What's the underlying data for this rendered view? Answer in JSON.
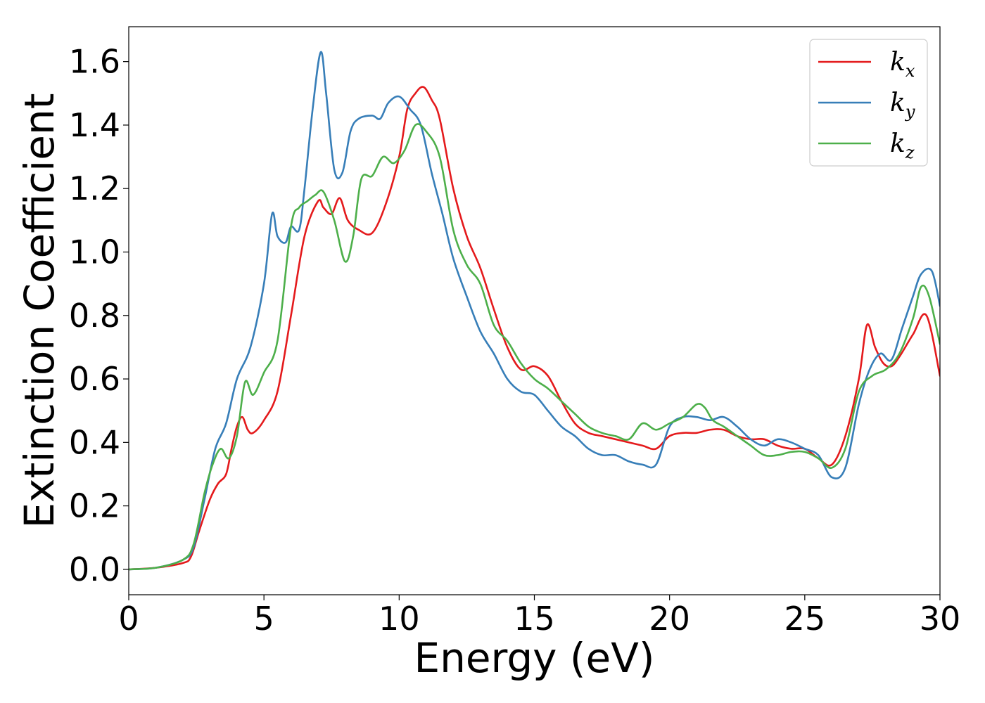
{
  "chart_data": {
    "type": "line",
    "xlabel": "Energy (eV)",
    "ylabel": "Extinction Coefficient",
    "xlim": [
      0,
      30
    ],
    "ylim": [
      -0.08,
      1.71
    ],
    "xticks": [
      0,
      5,
      10,
      15,
      20,
      25,
      30
    ],
    "yticks": [
      0.0,
      0.2,
      0.4,
      0.6,
      0.8,
      1.0,
      1.2,
      1.4,
      1.6
    ],
    "x_tick_labels": [
      "0",
      "5",
      "10",
      "15",
      "20",
      "25",
      "30"
    ],
    "y_tick_labels": [
      "0.0",
      "0.2",
      "0.4",
      "0.6",
      "0.8",
      "1.0",
      "1.2",
      "1.4",
      "1.6"
    ],
    "grid": false,
    "legend_position": "top-right",
    "series": [
      {
        "name": "k",
        "subscript": "x",
        "color": "#e41a1c",
        "x": [
          0,
          1,
          2,
          2.3,
          2.6,
          3.0,
          3.3,
          3.6,
          3.8,
          4.0,
          4.2,
          4.4,
          4.6,
          5.0,
          5.5,
          6.0,
          6.5,
          7.0,
          7.2,
          7.5,
          7.8,
          8.1,
          8.5,
          9.0,
          9.5,
          10.0,
          10.3,
          10.6,
          10.9,
          11.2,
          11.5,
          12.0,
          12.5,
          13.0,
          13.5,
          14.0,
          14.5,
          15.0,
          15.5,
          16.0,
          16.5,
          17.0,
          17.5,
          18.0,
          18.5,
          19.0,
          19.5,
          20.0,
          20.5,
          21.0,
          21.5,
          22.0,
          22.5,
          23.0,
          23.5,
          24.0,
          24.5,
          25.0,
          25.5,
          26.0,
          26.5,
          27.0,
          27.3,
          27.6,
          27.9,
          28.2,
          28.5,
          29.0,
          29.5,
          30.0
        ],
        "y": [
          0.0,
          0.005,
          0.02,
          0.04,
          0.12,
          0.22,
          0.27,
          0.3,
          0.38,
          0.45,
          0.48,
          0.44,
          0.43,
          0.47,
          0.56,
          0.8,
          1.05,
          1.16,
          1.14,
          1.12,
          1.17,
          1.1,
          1.07,
          1.06,
          1.15,
          1.3,
          1.45,
          1.5,
          1.52,
          1.48,
          1.42,
          1.2,
          1.05,
          0.95,
          0.82,
          0.7,
          0.63,
          0.64,
          0.61,
          0.53,
          0.46,
          0.43,
          0.42,
          0.41,
          0.4,
          0.39,
          0.38,
          0.42,
          0.43,
          0.43,
          0.44,
          0.44,
          0.42,
          0.41,
          0.41,
          0.39,
          0.38,
          0.38,
          0.35,
          0.33,
          0.42,
          0.6,
          0.77,
          0.7,
          0.65,
          0.64,
          0.67,
          0.74,
          0.8,
          0.61
        ]
      },
      {
        "name": "k",
        "subscript": "y",
        "color": "#377eb8",
        "x": [
          0,
          1,
          2,
          2.4,
          2.8,
          3.2,
          3.6,
          4.0,
          4.5,
          5.0,
          5.3,
          5.5,
          5.8,
          6.0,
          6.3,
          6.5,
          6.8,
          7.1,
          7.3,
          7.6,
          7.9,
          8.2,
          8.5,
          9.0,
          9.3,
          9.6,
          10.0,
          10.4,
          10.8,
          11.2,
          11.6,
          12.0,
          12.5,
          13.0,
          13.5,
          14.0,
          14.5,
          15.0,
          15.5,
          16.0,
          16.5,
          17.0,
          17.5,
          18.0,
          18.5,
          19.0,
          19.5,
          20.0,
          20.5,
          21.0,
          21.5,
          22.0,
          22.5,
          23.0,
          23.5,
          24.0,
          24.5,
          25.0,
          25.5,
          26.0,
          26.5,
          27.0,
          27.4,
          27.8,
          28.2,
          28.6,
          29.0,
          29.3,
          29.7,
          30.0
        ],
        "y": [
          0.0,
          0.005,
          0.03,
          0.07,
          0.22,
          0.38,
          0.46,
          0.6,
          0.7,
          0.9,
          1.12,
          1.05,
          1.03,
          1.08,
          1.07,
          1.2,
          1.45,
          1.63,
          1.5,
          1.26,
          1.25,
          1.38,
          1.42,
          1.43,
          1.42,
          1.47,
          1.49,
          1.45,
          1.4,
          1.25,
          1.12,
          0.98,
          0.86,
          0.75,
          0.68,
          0.6,
          0.56,
          0.55,
          0.5,
          0.45,
          0.42,
          0.38,
          0.36,
          0.36,
          0.34,
          0.33,
          0.33,
          0.45,
          0.48,
          0.48,
          0.47,
          0.48,
          0.45,
          0.41,
          0.39,
          0.41,
          0.4,
          0.38,
          0.36,
          0.29,
          0.32,
          0.52,
          0.63,
          0.68,
          0.66,
          0.76,
          0.86,
          0.93,
          0.94,
          0.83
        ]
      },
      {
        "name": "k",
        "subscript": "z",
        "color": "#4daf4a",
        "x": [
          0,
          1,
          2,
          2.4,
          2.8,
          3.1,
          3.4,
          3.7,
          4.0,
          4.3,
          4.6,
          5.0,
          5.5,
          6.0,
          6.3,
          6.6,
          6.9,
          7.2,
          7.6,
          8.0,
          8.3,
          8.6,
          9.0,
          9.4,
          9.8,
          10.2,
          10.6,
          11.0,
          11.5,
          12.0,
          12.5,
          13.0,
          13.5,
          14.0,
          14.5,
          15.0,
          15.5,
          16.0,
          16.5,
          17.0,
          17.5,
          18.0,
          18.5,
          19.0,
          19.5,
          20.0,
          20.5,
          21.0,
          21.3,
          21.6,
          22.0,
          22.5,
          23.0,
          23.5,
          24.0,
          24.5,
          25.0,
          25.5,
          26.0,
          26.5,
          27.0,
          27.5,
          28.0,
          28.5,
          29.0,
          29.3,
          29.6,
          30.0
        ],
        "y": [
          0.0,
          0.005,
          0.03,
          0.08,
          0.24,
          0.33,
          0.38,
          0.35,
          0.42,
          0.59,
          0.55,
          0.62,
          0.72,
          1.08,
          1.14,
          1.16,
          1.18,
          1.19,
          1.1,
          0.97,
          1.05,
          1.23,
          1.24,
          1.3,
          1.28,
          1.32,
          1.4,
          1.38,
          1.3,
          1.07,
          0.96,
          0.9,
          0.77,
          0.72,
          0.65,
          0.6,
          0.57,
          0.53,
          0.49,
          0.45,
          0.43,
          0.42,
          0.41,
          0.46,
          0.44,
          0.46,
          0.48,
          0.52,
          0.51,
          0.47,
          0.45,
          0.42,
          0.39,
          0.36,
          0.36,
          0.37,
          0.37,
          0.35,
          0.32,
          0.38,
          0.56,
          0.61,
          0.63,
          0.68,
          0.79,
          0.89,
          0.86,
          0.71
        ]
      }
    ]
  }
}
